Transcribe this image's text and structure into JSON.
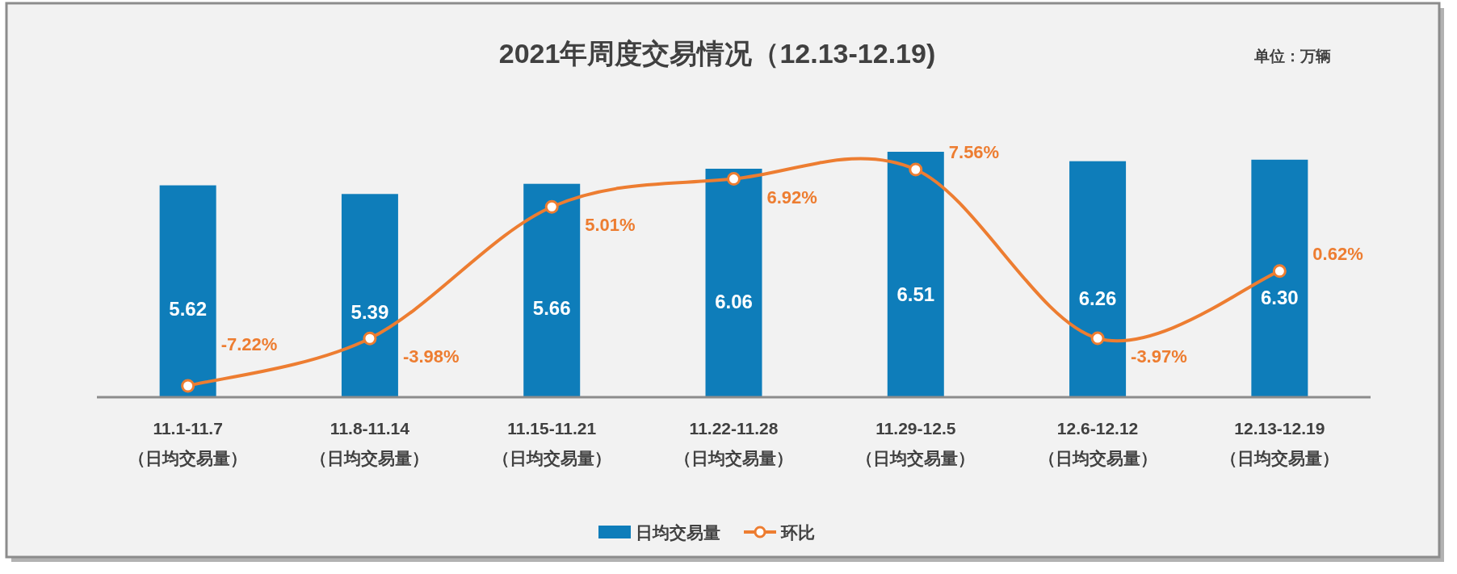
{
  "chart_data": {
    "type": "bar",
    "title": "2021年周度交易情况（12.13-12.19)",
    "annotations": [
      "单位：万辆"
    ],
    "categories": [
      "11.1-11.7\n（日均交易量）",
      "11.8-11.14\n（日均交易量）",
      "11.15-11.21\n（日均交易量）",
      "11.22-11.28\n（日均交易量）",
      "11.29-12.5\n（日均交易量）",
      "12.6-12.12\n（日均交易量）",
      "12.13-12.19\n（日均交易量）"
    ],
    "series": [
      {
        "name": "日均交易量",
        "color": "#0e7dba",
        "values": [
          5.62,
          5.39,
          5.66,
          6.06,
          6.51,
          6.26,
          6.3
        ],
        "value_labels": [
          "5.62",
          "5.39",
          "5.66",
          "6.06",
          "6.51",
          "6.26",
          "6.30"
        ]
      },
      {
        "name": "环比",
        "type": "line",
        "axis": "y2",
        "color": "#ed7d31",
        "marker": "circle",
        "line_style": "solid",
        "values": [
          -7.22,
          -3.98,
          5.01,
          6.92,
          7.56,
          -3.97,
          0.62
        ],
        "value_labels": [
          "-7.22%",
          "-3.98%",
          "5.01%",
          "6.92%",
          "7.56%",
          "-3.97%",
          "0.62%"
        ]
      }
    ],
    "legend": "bottom"
  }
}
